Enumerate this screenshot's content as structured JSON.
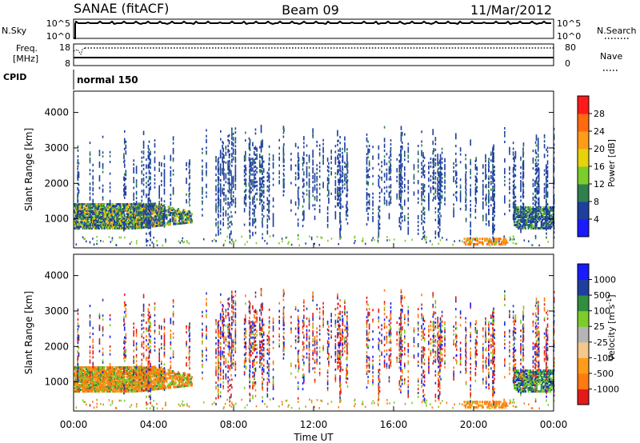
{
  "header": {
    "station": "SANAE (fitACF)",
    "beam": "Beam 09",
    "date": "11/Mar/2012"
  },
  "status_panels": {
    "nsky_label": "N.Sky",
    "nsky_ticks": [
      "10^5",
      "10^0"
    ],
    "nsearch_label": "N.Search",
    "nsearch_ticks": [
      "10^5",
      "10^0"
    ],
    "freq_label": "Freq.",
    "freq_unit": "[MHz]",
    "freq_ticks": [
      "18",
      "8"
    ],
    "nave_label": "Nave",
    "nave_ticks": [
      "80",
      "0"
    ],
    "cpid_label": "CPID",
    "cpid_value": "normal 150"
  },
  "chart_data": [
    {
      "type": "heatmap",
      "name": "power",
      "ylabel": "Slant Range [km]",
      "yticks": [
        "1000",
        "2000",
        "3000",
        "4000"
      ],
      "ylim": [
        180,
        4600
      ],
      "colorbar_label": "Power [dB]",
      "colorbar_ticks": [
        "4",
        "8",
        "12",
        "16",
        "20",
        "24",
        "28"
      ],
      "colorbar_colors": [
        "#1a1aff",
        "#1f3f9f",
        "#2f7f4f",
        "#7ccd2a",
        "#e8d20a",
        "#ff9c1a",
        "#ff6a10",
        "#ff1a1a"
      ],
      "colorbar_range": [
        0,
        32
      ]
    },
    {
      "type": "heatmap",
      "name": "velocity",
      "ylabel": "Slant Range [km]",
      "yticks": [
        "1000",
        "2000",
        "3000",
        "4000"
      ],
      "ylim": [
        180,
        4600
      ],
      "colorbar_label": "Velocity [m s",
      "colorbar_label_sup": "-1",
      "colorbar_label_end": "]",
      "colorbar_ticks": [
        "-1000",
        "-500",
        "-100",
        "-25",
        "25",
        "100",
        "500",
        "1000"
      ],
      "colorbar_colors": [
        "#e41a1a",
        "#ff7a10",
        "#ff9c1a",
        "#f3c88a",
        "#b5b5b5",
        "#7ccd2a",
        "#2f8f3f",
        "#1f3f9f",
        "#1a1aff"
      ]
    }
  ],
  "xaxis": {
    "label": "Time UT",
    "ticks": [
      "00:00",
      "04:00",
      "08:00",
      "12:00",
      "16:00",
      "20:00",
      "00:00"
    ],
    "xlim_hours": [
      0,
      24
    ]
  }
}
